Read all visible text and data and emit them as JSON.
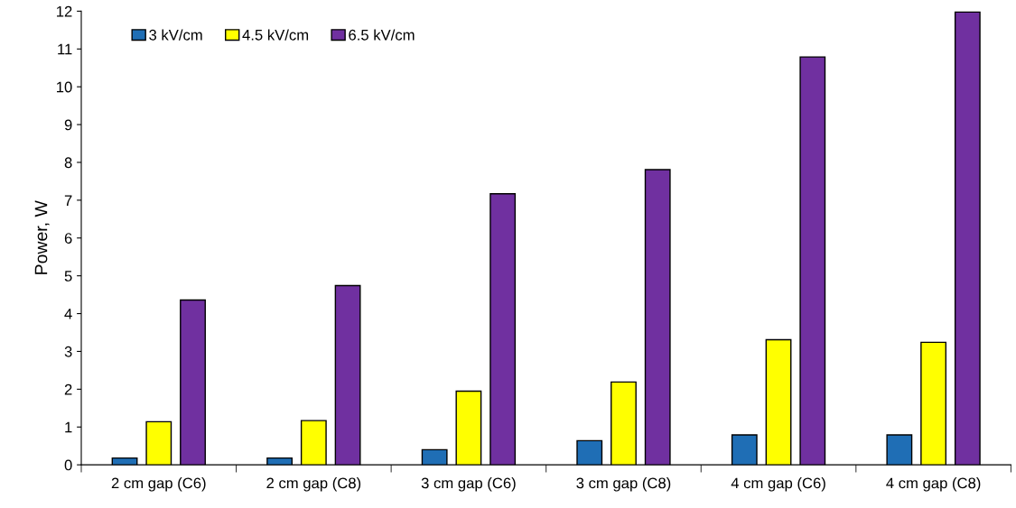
{
  "chart_data": {
    "type": "bar",
    "ylabel": "Power, W",
    "categories": [
      "2 cm gap (C6)",
      "2 cm gap (C8)",
      "3 cm gap (C6)",
      "3 cm gap (C8)",
      "4 cm gap (C6)",
      "4 cm gap (C8)"
    ],
    "series": [
      {
        "name": "3 kV/cm",
        "color": "#1f6eb5",
        "values": [
          0.18,
          0.18,
          0.4,
          0.64,
          0.79,
          0.79
        ]
      },
      {
        "name": "4.5 kV/cm",
        "color": "#ffff00",
        "values": [
          1.14,
          1.17,
          1.95,
          2.19,
          3.31,
          3.24
        ]
      },
      {
        "name": "6.5 kV/cm",
        "color": "#7030a0",
        "values": [
          4.36,
          4.74,
          7.17,
          7.81,
          10.79,
          11.98
        ]
      }
    ],
    "ylim": [
      0,
      12
    ],
    "yticks": [
      0,
      1,
      2,
      3,
      4,
      5,
      6,
      7,
      8,
      9,
      10,
      11,
      12
    ],
    "grid": false,
    "legend": "top left"
  }
}
